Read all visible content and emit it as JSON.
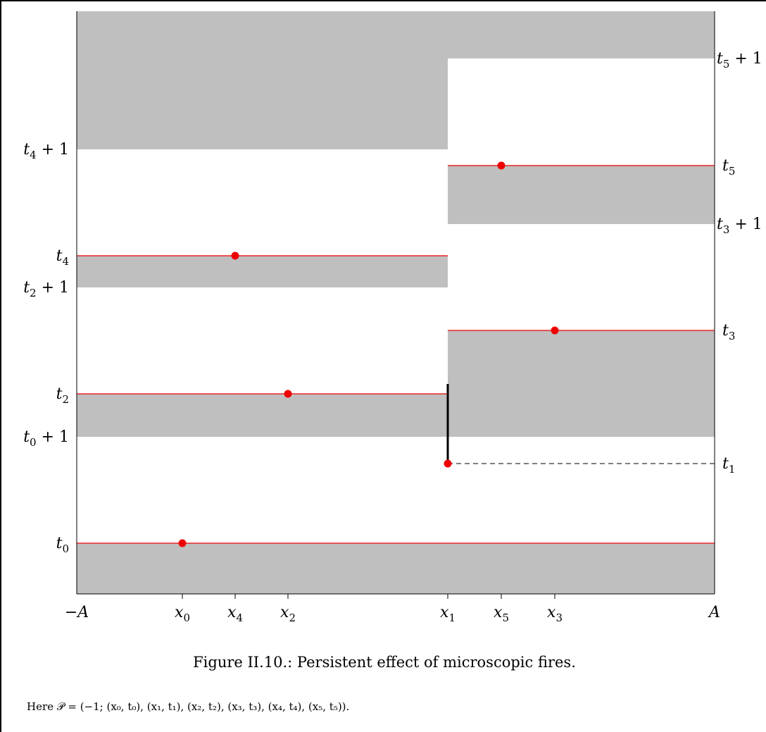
{
  "caption": "Figure II.10.: Persistent effect of microscopic fires.",
  "note": "Here 𝒫 = (−1; (x₀, t₀), (x₁, t₁), (x₂, t₂), (x₃, t₃), (x₄, t₄), (x₅, t₅)).",
  "x_ticks": [
    {
      "base": "−A",
      "sub": "",
      "coord": "A_neg"
    },
    {
      "base": "x",
      "sub": "0",
      "coord": "x0"
    },
    {
      "base": "x",
      "sub": "4",
      "coord": "x4"
    },
    {
      "base": "x",
      "sub": "2",
      "coord": "x2"
    },
    {
      "base": "x",
      "sub": "1",
      "coord": "x1"
    },
    {
      "base": "x",
      "sub": "5",
      "coord": "x5"
    },
    {
      "base": "x",
      "sub": "3",
      "coord": "x3"
    },
    {
      "base": "A",
      "sub": "",
      "coord": "A_pos"
    }
  ],
  "left_labels": [
    {
      "base": "t",
      "sub": "4",
      "suffix": " + 1",
      "coord": "t4p1"
    },
    {
      "base": "t",
      "sub": "4",
      "suffix": "",
      "coord": "t4"
    },
    {
      "base": "t",
      "sub": "2",
      "suffix": " + 1",
      "coord": "t2p1"
    },
    {
      "base": "t",
      "sub": "2",
      "suffix": "",
      "coord": "t2"
    },
    {
      "base": "t",
      "sub": "0",
      "suffix": " + 1",
      "coord": "t0p1"
    },
    {
      "base": "t",
      "sub": "0",
      "suffix": "",
      "coord": "t0"
    }
  ],
  "right_labels": [
    {
      "base": "t",
      "sub": "5",
      "suffix": " + 1",
      "coord": "t5p1"
    },
    {
      "base": "t",
      "sub": "5",
      "suffix": "",
      "coord": "t5"
    },
    {
      "base": "t",
      "sub": "3",
      "suffix": " + 1",
      "coord": "t3p1"
    },
    {
      "base": "t",
      "sub": "3",
      "suffix": "",
      "coord": "t3"
    },
    {
      "base": "t",
      "sub": "1",
      "suffix": "",
      "coord": "t1"
    }
  ],
  "fires": [
    {
      "x": "x0",
      "t": "t0"
    },
    {
      "x": "x1",
      "t": "t1"
    },
    {
      "x": "x2",
      "t": "t2"
    },
    {
      "x": "x3",
      "t": "t3"
    },
    {
      "x": "x4",
      "t": "t4"
    },
    {
      "x": "x5",
      "t": "t5"
    }
  ],
  "colors": {
    "shade": "#bfbfbf",
    "fire": "#ee0000",
    "line": "#ee0000",
    "axis": "#000000"
  }
}
